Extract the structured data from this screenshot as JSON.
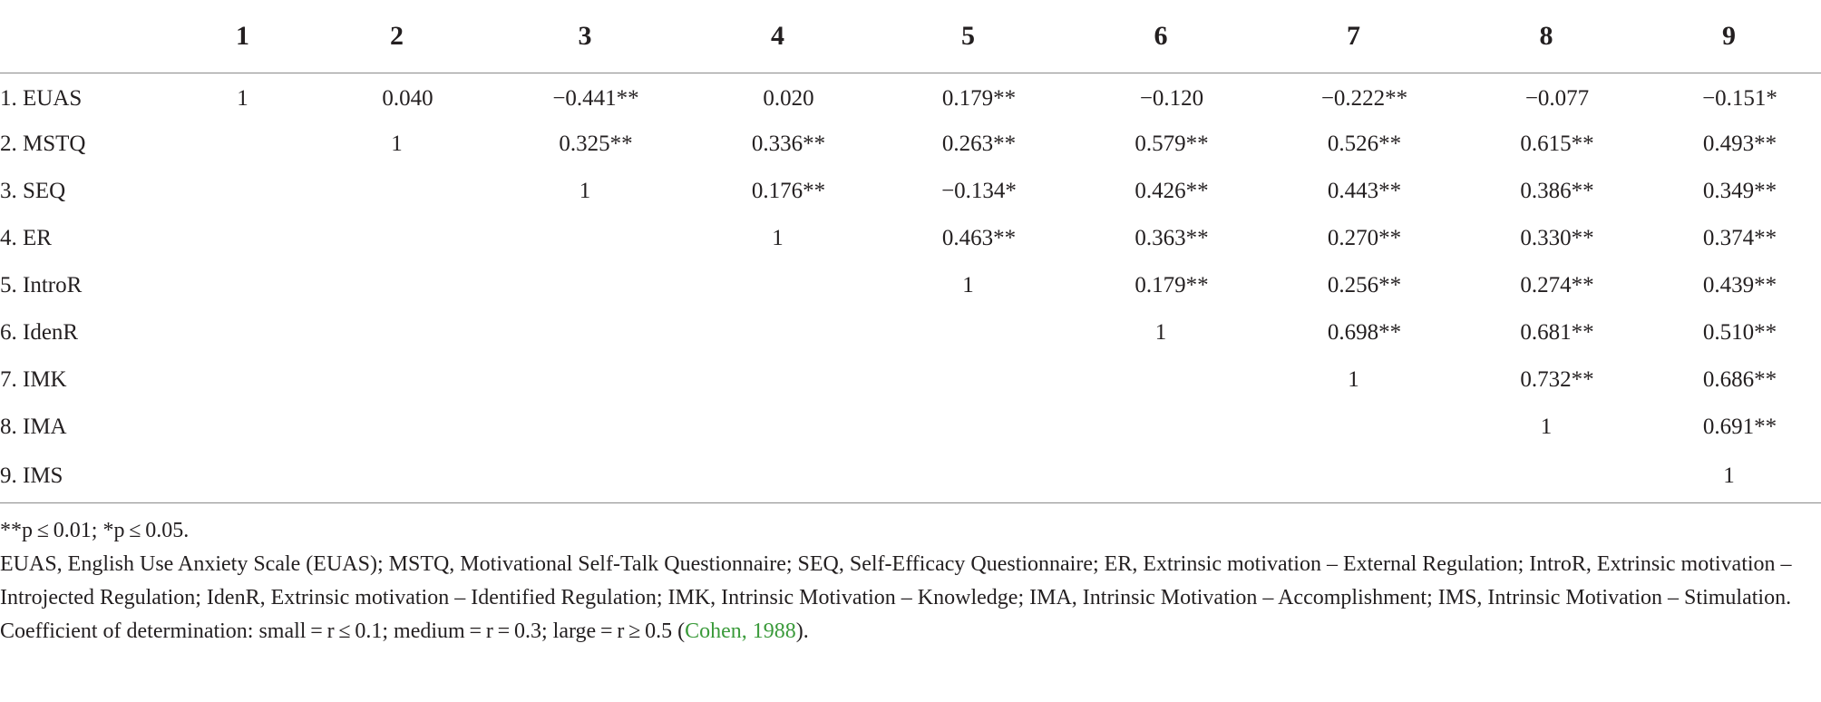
{
  "table": {
    "header": [
      "",
      "1",
      "2",
      "3",
      "4",
      "5",
      "6",
      "7",
      "8",
      "9"
    ],
    "rows": [
      {
        "label": "1. EUAS",
        "cells": [
          "1",
          "0.040",
          "−0.441**",
          "0.020",
          "0.179**",
          "−0.120",
          "−0.222**",
          "−0.077",
          "−0.151*"
        ]
      },
      {
        "label": "2. MSTQ",
        "cells": [
          "",
          "1",
          "0.325**",
          "0.336**",
          "0.263**",
          "0.579**",
          "0.526**",
          "0.615**",
          "0.493**"
        ]
      },
      {
        "label": "3. SEQ",
        "cells": [
          "",
          "",
          "1",
          "0.176**",
          "−0.134*",
          "0.426**",
          "0.443**",
          "0.386**",
          "0.349**"
        ]
      },
      {
        "label": "4. ER",
        "cells": [
          "",
          "",
          "",
          "1",
          "0.463**",
          "0.363**",
          "0.270**",
          "0.330**",
          "0.374**"
        ]
      },
      {
        "label": "5. IntroR",
        "cells": [
          "",
          "",
          "",
          "",
          "1",
          "0.179**",
          "0.256**",
          "0.274**",
          "0.439**"
        ]
      },
      {
        "label": "6. IdenR",
        "cells": [
          "",
          "",
          "",
          "",
          "",
          "1",
          "0.698**",
          "0.681**",
          "0.510**"
        ]
      },
      {
        "label": "7. IMK",
        "cells": [
          "",
          "",
          "",
          "",
          "",
          "",
          "1",
          "0.732**",
          "0.686**"
        ]
      },
      {
        "label": "8. IMA",
        "cells": [
          "",
          "",
          "",
          "",
          "",
          "",
          "",
          "1",
          "0.691**"
        ]
      },
      {
        "label": "9. IMS",
        "cells": [
          "",
          "",
          "",
          "",
          "",
          "",
          "",
          "",
          "1"
        ]
      }
    ]
  },
  "notes": {
    "significance": "**p ≤ 0.01; *p ≤ 0.05.",
    "abbreviations": "EUAS, English Use Anxiety Scale (EUAS); MSTQ, Motivational Self-Talk Questionnaire; SEQ, Self-Efficacy Questionnaire; ER, Extrinsic motivation – External Regulation; IntroR, Extrinsic motivation – Introjected Regulation; IdenR, Extrinsic motivation – Identified Regulation; IMK, Intrinsic Motivation – Knowledge; IMA, Intrinsic Motivation – Accomplishment; IMS, Intrinsic Motivation – Stimulation.",
    "determination": "Coefficient of determination: small = r ≤ 0.1; medium = r = 0.3; large = r ≥ 0.5 (",
    "citation": "Cohen, 1988",
    "determination_end": ")."
  },
  "colors": {
    "text": "#231f20",
    "rule": "#8a8a8a",
    "citation_link": "#3a9a3a"
  }
}
